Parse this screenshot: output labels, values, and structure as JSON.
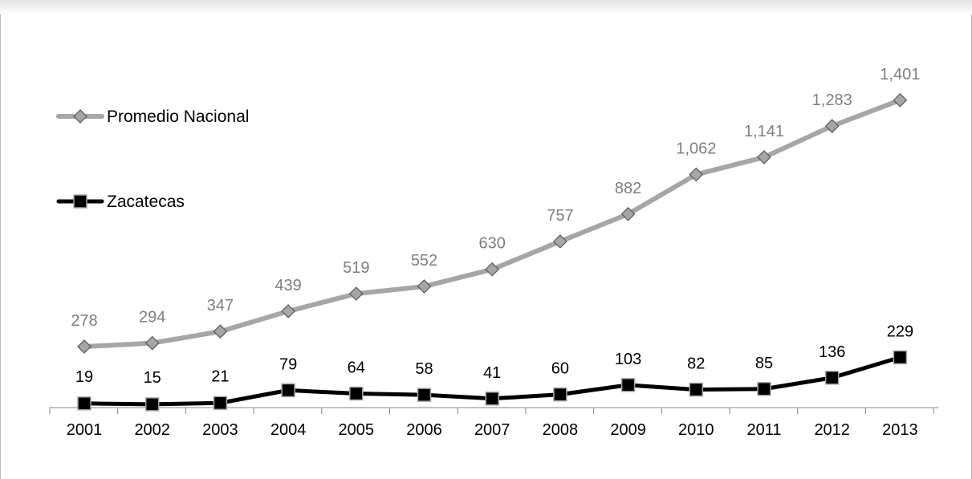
{
  "chart_data": {
    "type": "line",
    "title": "",
    "xlabel": "",
    "ylabel": "",
    "categories": [
      "2001",
      "2002",
      "2003",
      "2004",
      "2005",
      "2006",
      "2007",
      "2008",
      "2009",
      "2010",
      "2011",
      "2012",
      "2013"
    ],
    "ylim": [
      0,
      1500
    ],
    "grid": false,
    "legend_position": "left",
    "series": [
      {
        "name": "Promedio Nacional",
        "values": [
          278,
          294,
          347,
          439,
          519,
          552,
          630,
          757,
          882,
          1062,
          1141,
          1283,
          1401
        ],
        "labels": [
          "278",
          "294",
          "347",
          "439",
          "519",
          "552",
          "630",
          "757",
          "882",
          "1,062",
          "1,141",
          "1,283",
          "1,401"
        ],
        "line_color": "#a6a6a6",
        "marker": "diamond",
        "marker_fill": "#a6a6a6",
        "marker_stroke": "#595959",
        "label_color": "#7f7f7f"
      },
      {
        "name": "Zacatecas",
        "values": [
          19,
          15,
          21,
          79,
          64,
          58,
          41,
          60,
          103,
          82,
          85,
          136,
          229
        ],
        "labels": [
          "19",
          "15",
          "21",
          "79",
          "64",
          "58",
          "41",
          "60",
          "103",
          "82",
          "85",
          "136",
          "229"
        ],
        "line_color": "#000000",
        "marker": "square",
        "marker_fill": "#000000",
        "marker_stroke": "#a6a6a6",
        "label_color": "#000000"
      }
    ]
  }
}
